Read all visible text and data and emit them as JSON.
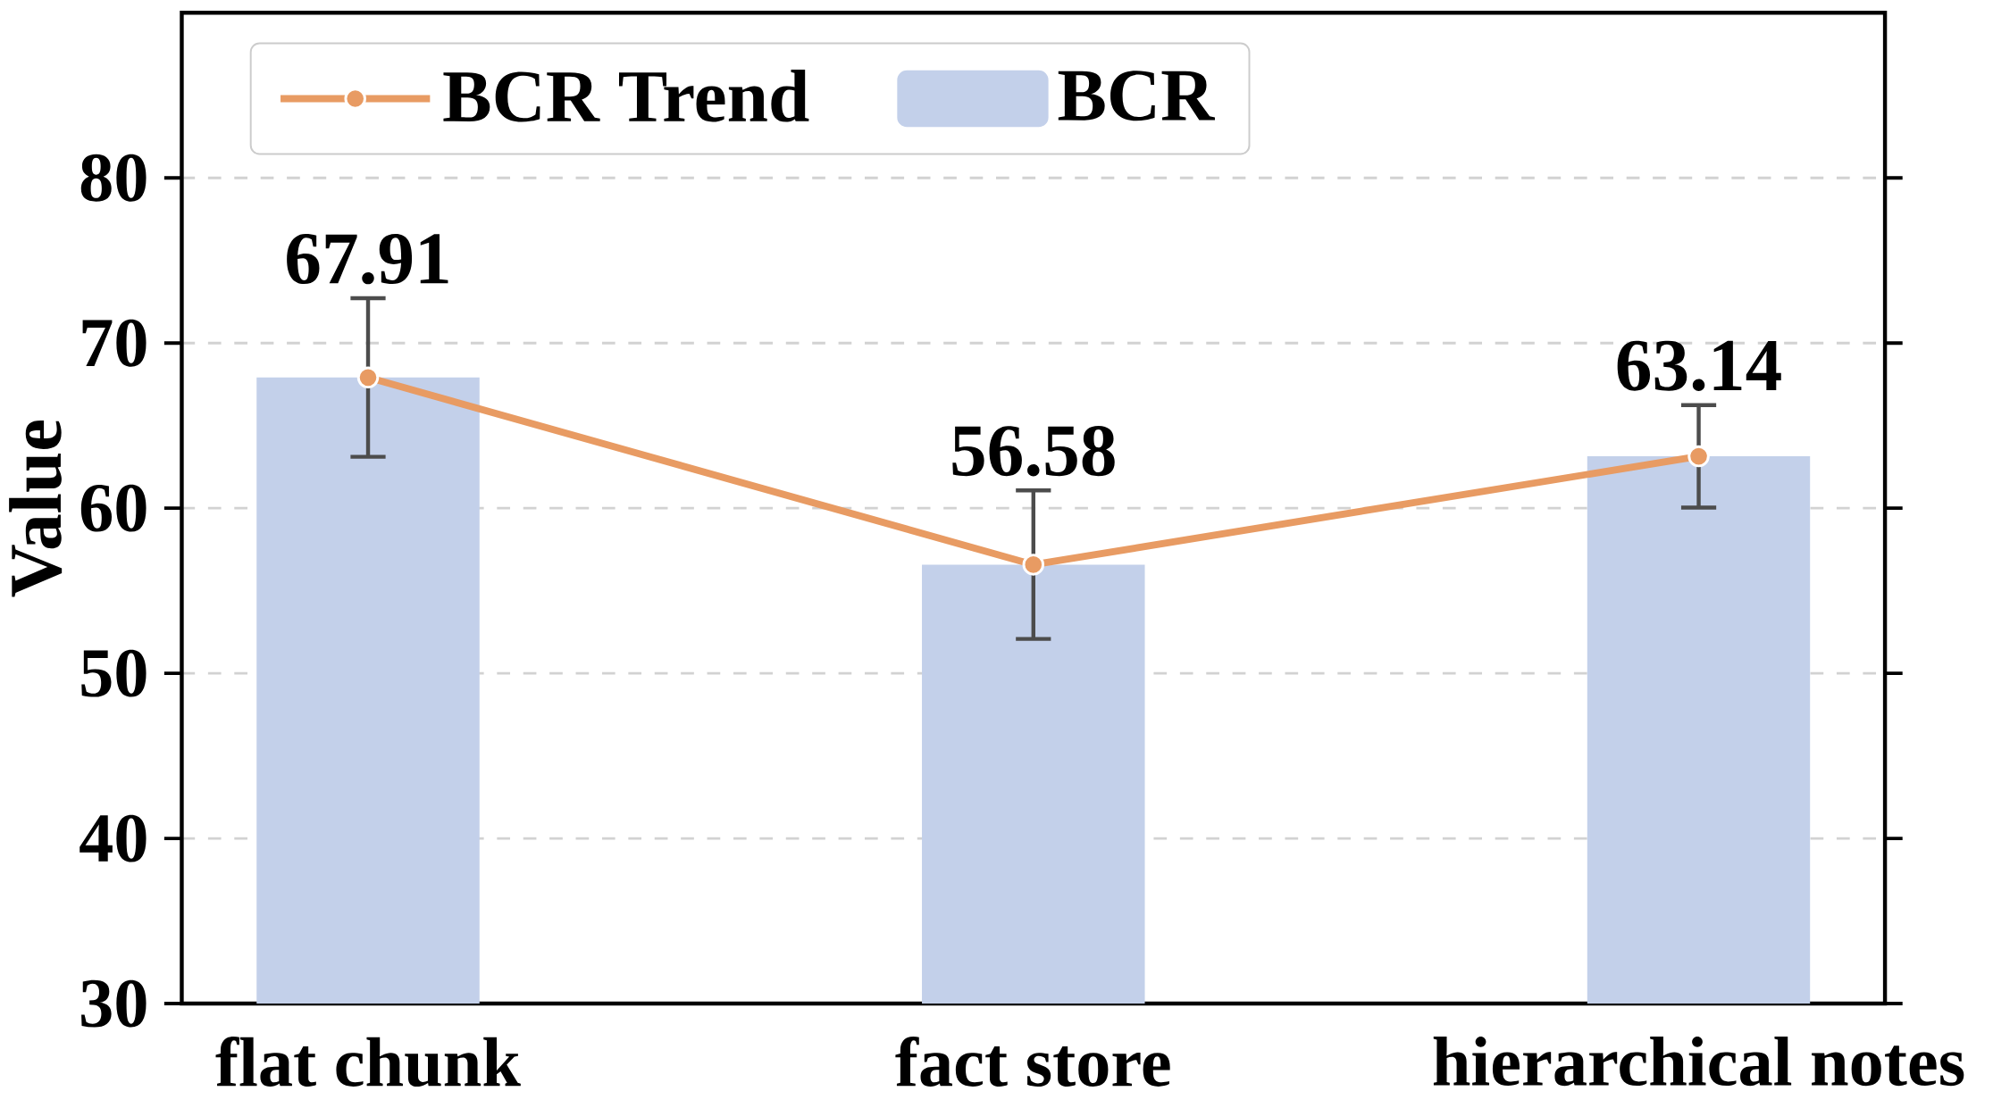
{
  "chart_data": {
    "type": "bar",
    "ylabel": "Value",
    "categories": [
      "flat chunk",
      "fact store",
      "hierarchical notes"
    ],
    "series": [
      {
        "name": "BCR Trend",
        "type": "line",
        "color": "#e89b63",
        "values": [
          67.91,
          56.58,
          63.14
        ],
        "value_labels": [
          "67.91",
          "56.58",
          "63.14"
        ]
      },
      {
        "name": "BCR",
        "color": "#c3d0ea",
        "values": [
          67.91,
          56.58,
          63.14
        ],
        "errors": [
          4.8,
          4.5,
          3.1
        ]
      }
    ],
    "ylim": [
      30,
      90
    ],
    "yticks": [
      30,
      40,
      50,
      60,
      70,
      80
    ],
    "grid": "y",
    "legend": "top left",
    "marker": "circle"
  }
}
